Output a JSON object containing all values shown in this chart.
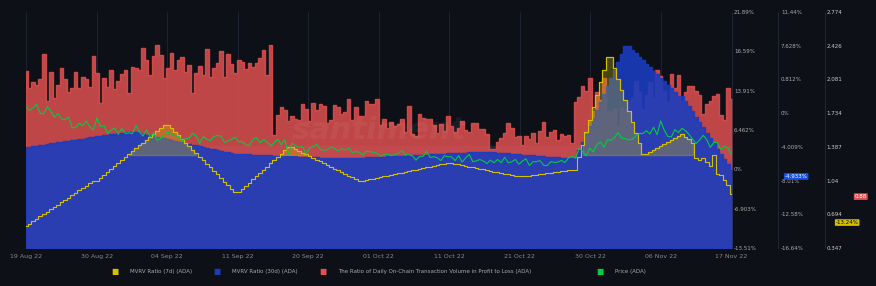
{
  "background_color": "#0d1117",
  "x_labels": [
    "19 Aug 22",
    "30 Aug 22",
    "04 Sep 22",
    "11 Sep 22",
    "20 Sep 22",
    "01 Oct 22",
    "11 Oct 22",
    "21 Oct 22",
    "30 Oct 22",
    "06 Nov 22",
    "17 Nov 22"
  ],
  "left_yticks": [
    "21.89%",
    "16.59%",
    "13.91%",
    "6.462%",
    "0%",
    "-6.903%",
    "-13.51%"
  ],
  "mid_yticks": [
    "11.44%",
    "7.628%",
    "0.812%",
    "0%",
    "-4.009%",
    "-8.01%",
    "-12.58%",
    "-16.64%"
  ],
  "right_yticks": [
    "2.774",
    "2.426",
    "2.081",
    "1.734",
    "1.387",
    "1.04",
    "0.694",
    "0.347"
  ],
  "legend": [
    {
      "label": "MVRV Ratio (7d) (ADA)",
      "color": "#d4c000"
    },
    {
      "label": "MVRV Ratio (30d) (ADA)",
      "color": "#1a3cbe"
    },
    {
      "label": "The Ratio of Daily On-Chain Transaction Volume in Profit to Loss (ADA)",
      "color": "#e05050"
    },
    {
      "label": "Price (ADA)",
      "color": "#00cc44"
    }
  ],
  "hband_color": "#1e2a45",
  "watermark_color": [
    1.0,
    1.0,
    1.0,
    0.05
  ],
  "current_label_mvrv30": "-4.933%",
  "current_label_price": "0.88",
  "current_label_mvrv7": "-13.24%"
}
